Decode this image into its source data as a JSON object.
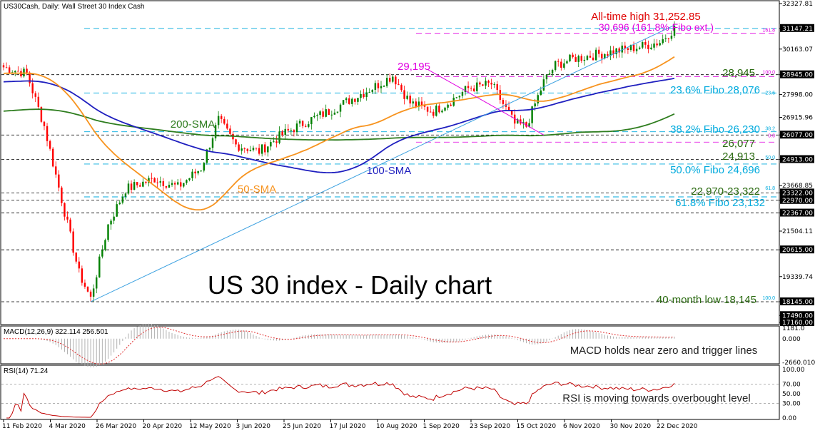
{
  "header": {
    "symbol_info": "US30Cash, Daily:  Wall Street 30 Index Cash",
    "macd_info": "MACD(12,26,9) 322.114 256.501",
    "rsi_info": "RSI(14) 71.24"
  },
  "colors": {
    "background": "#ffffff",
    "bull_candle": "#008000",
    "bear_candle": "#ff0000",
    "sma50": "#f7931e",
    "sma100": "#1f1fbf",
    "sma200": "#2e7d1e",
    "trendline": "#3aa0e0",
    "fibo_magenta": "#e000e0",
    "fibo_cyan": "#00aadd",
    "macd_line": "#e03030",
    "macd_hist": "#b0b0b0",
    "rsi_line": "#c00000",
    "annotation_green": "#2a6a10",
    "annotation_red": "#e00000"
  },
  "chart_data": {
    "type": "line",
    "title": "US 30 index - Daily chart",
    "price_axis_labels": [
      "32327.81",
      "31147.21",
      "30163.07",
      "28945.00",
      "27998.00",
      "26915.96",
      "26077.00",
      "24913.00",
      "23668.85",
      "23322.00",
      "22970.00",
      "22367.00",
      "21504.11",
      "20615.00",
      "19339.74",
      "18145.00",
      "17490.00",
      "17160.00"
    ],
    "macd_axis_labels": [
      "1181.0",
      "0.000",
      "-2660.010"
    ],
    "rsi_axis_labels": [
      "100.00",
      "70.00",
      "50.00",
      "30.00",
      "0.00"
    ],
    "x_tick_labels": [
      "11 Feb 2020",
      "4 Mar 2020",
      "26 Mar 2020",
      "20 Apr 2020",
      "12 May 2020",
      "3 Jun 2020",
      "25 Jun 2020",
      "17 Jul 2020",
      "10 Aug 2020",
      "1 Sep 2020",
      "23 Sep 2020",
      "15 Oct 2020",
      "6 Nov 2020",
      "30 Nov 2020",
      "22 Dec 2020"
    ],
    "fibo_levels": [
      {
        "label": "30,696 (161.8% Fibo ext.)",
        "value": 30696
      },
      {
        "label": "23.6% Fibo 28,076",
        "value": 28076
      },
      {
        "label": "38.2% Fibo 26,230",
        "value": 26230
      },
      {
        "label": "50.0% Fibo 24,696",
        "value": 24696
      },
      {
        "label": "61.8% Fibo 23,132",
        "value": 23132
      }
    ],
    "fibo_tags": [
      "161.8",
      "100.0",
      "23.6",
      "38.2",
      "0.0",
      "50.0",
      "61.8",
      "100.0"
    ],
    "horizontal_levels": [
      31147.21,
      28945,
      26077,
      24913,
      23322,
      22970,
      22367,
      20615,
      18145
    ],
    "annotations": {
      "all_time_high": "All-time high 31,252.85",
      "high_29195": "29,195",
      "level_28945": "28,945",
      "level_26077": "26,077",
      "level_24913": "24,913",
      "zone_22970": "22,970-23,322",
      "low_18145": "40-month low 18,145",
      "sma200": "200-SMA",
      "sma100": "100-SMA",
      "sma50": "50-SMA",
      "macd_note": "MACD holds near zero and trigger lines",
      "rsi_note": "RSI is moving towards overbought level"
    },
    "price_series": {
      "name": "",
      "x": [
        "11 Feb 2020",
        "4 Mar 2020",
        "26 Mar 2020",
        "20 Apr 2020",
        "12 May 2020",
        "3 Jun 2020",
        "25 Jun 2020",
        "17 Jul 2020",
        "10 Aug 2020",
        "1 Sep 2020",
        "23 Sep 2020",
        "15 Oct 2020",
        "6 Nov 2020",
        "30 Nov 2020",
        "22 Dec 2020",
        "31 Dec 2020"
      ],
      "values": [
        29300,
        25900,
        21500,
        24000,
        23700,
        26300,
        25600,
        26700,
        27900,
        29100,
        27200,
        28500,
        28900,
        29800,
        30200,
        31150
      ]
    },
    "ylim": [
      17160,
      32327.81
    ],
    "macd_ylim": [
      -2660.01,
      1181.0
    ],
    "rsi_ylim": [
      0,
      100
    ]
  }
}
